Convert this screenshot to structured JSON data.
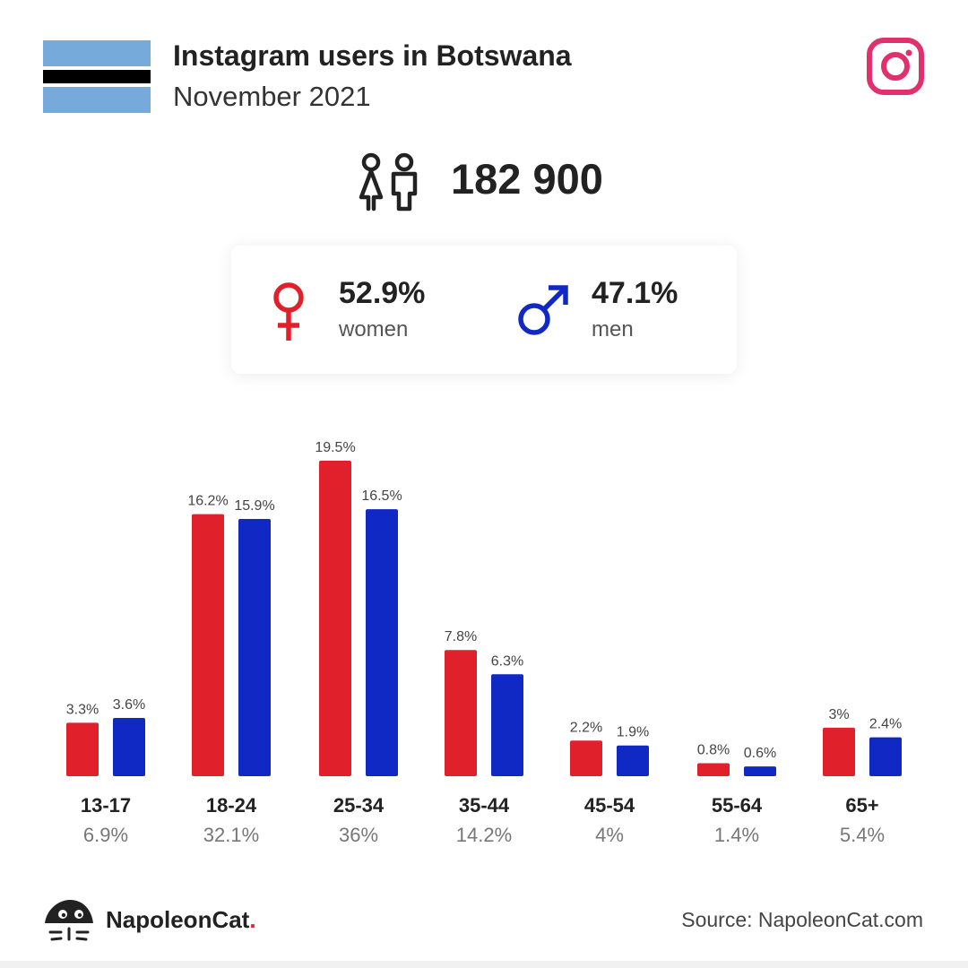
{
  "header": {
    "title": "Instagram users in Botswana",
    "subtitle": "November 2021"
  },
  "total": {
    "value": "182 900",
    "icon": "people-icon"
  },
  "gender": {
    "women": {
      "value": "52.9%",
      "label": "women",
      "color": "#e0202a"
    },
    "men": {
      "value": "47.1%",
      "label": "men",
      "color": "#1028c4"
    }
  },
  "chart_data": {
    "type": "bar",
    "categories": [
      "13-17",
      "18-24",
      "25-34",
      "35-44",
      "45-54",
      "55-64",
      "65+"
    ],
    "group_totals": [
      "6.9%",
      "32.1%",
      "36%",
      "14.2%",
      "4%",
      "1.4%",
      "5.4%"
    ],
    "series": [
      {
        "name": "women",
        "color": "#e0202a",
        "values": [
          3.3,
          16.2,
          19.5,
          7.8,
          2.2,
          0.8,
          3
        ],
        "labels": [
          "3.3%",
          "16.2%",
          "19.5%",
          "7.8%",
          "2.2%",
          "0.8%",
          "3%"
        ]
      },
      {
        "name": "men",
        "color": "#1028c4",
        "values": [
          3.6,
          15.9,
          16.5,
          6.3,
          1.9,
          0.6,
          2.4
        ],
        "labels": [
          "3.6%",
          "15.9%",
          "16.5%",
          "6.3%",
          "1.9%",
          "0.6%",
          "2.4%"
        ]
      }
    ],
    "ylim": [
      0,
      19.5
    ],
    "grid": false,
    "legend": "none"
  },
  "footer": {
    "brand": "NapoleonCat",
    "brand_dot": ".",
    "source": "Source: NapoleonCat.com"
  },
  "colors": {
    "flag_blue": "#75aadb",
    "flag_black": "#000000",
    "instagram": "#e1306c",
    "text": "#222222"
  }
}
